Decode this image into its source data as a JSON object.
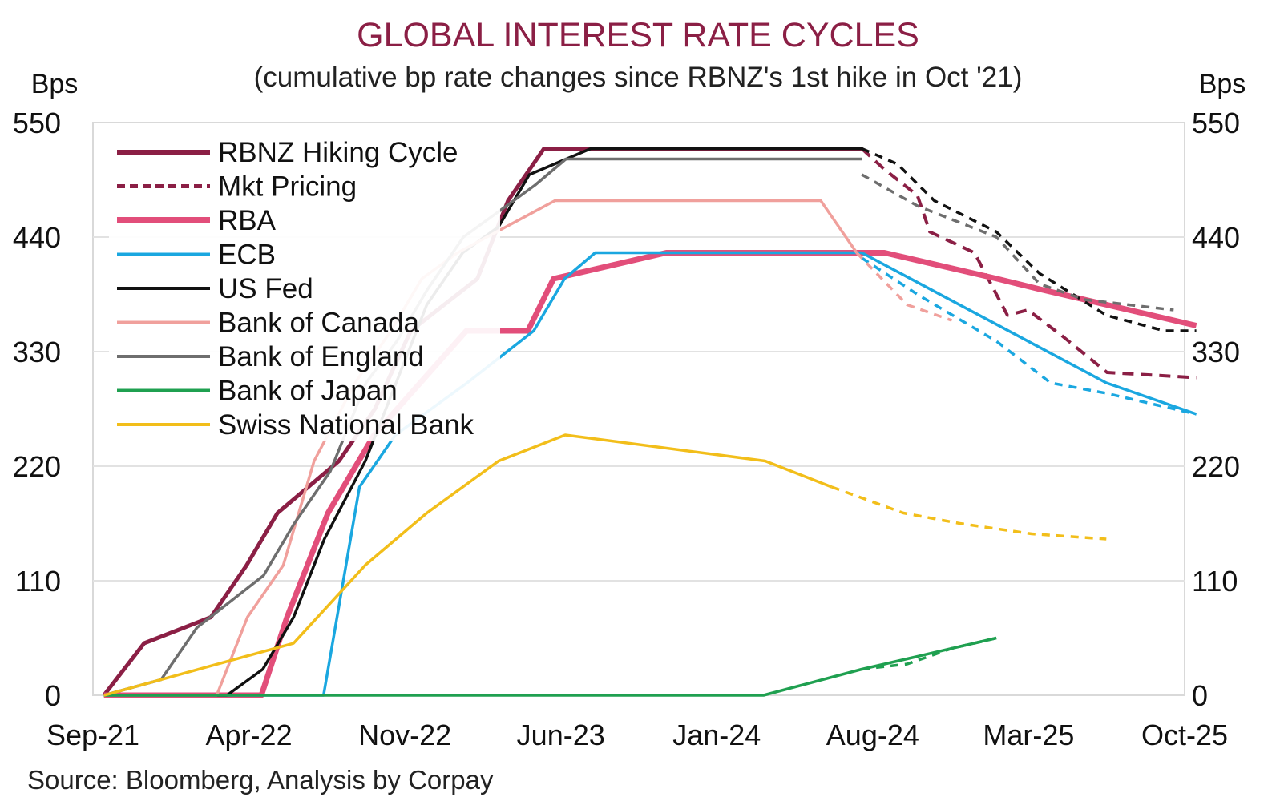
{
  "chart_data": {
    "type": "line",
    "title": "GLOBAL INTEREST RATE CYCLES",
    "subtitle": "(cumulative bp rate changes since RBNZ's 1st hike in Oct '21)",
    "ylabel_left": "Bps",
    "ylabel_right": "Bps",
    "source": "Source: Bloomberg, Analysis by Corpay",
    "title_color": "#8B1F45",
    "x_ticks": [
      "Sep-21",
      "Apr-22",
      "Nov-22",
      "Jun-23",
      "Jan-24",
      "Aug-24",
      "Mar-25",
      "Oct-25"
    ],
    "y_ticks": [
      0,
      110,
      220,
      330,
      440,
      550
    ],
    "ylim": [
      0,
      550
    ],
    "x_range": [
      "Sep-21",
      "Oct-25"
    ],
    "grid": true,
    "legend_position": "top-left",
    "series": [
      {
        "name": "RBNZ Hiking Cycle",
        "color": "#8B1F45",
        "width": 5,
        "dash": "",
        "points": [
          [
            "2021-09-30",
            0
          ],
          [
            "2021-11-24",
            50
          ],
          [
            "2022-02-23",
            75
          ],
          [
            "2022-04-13",
            125
          ],
          [
            "2022-05-25",
            175
          ],
          [
            "2022-08-17",
            225
          ],
          [
            "2022-10-05",
            275
          ],
          [
            "2022-11-23",
            350
          ],
          [
            "2023-02-22",
            400
          ],
          [
            "2023-04-05",
            475
          ],
          [
            "2023-05-24",
            525
          ],
          [
            "2024-07-31",
            525
          ]
        ]
      },
      {
        "name": "Mkt Pricing",
        "color": "#8B1F45",
        "width": 4,
        "dash": "14,9",
        "points": [
          [
            "2024-07-31",
            525
          ],
          [
            "2024-08-31",
            505
          ],
          [
            "2024-10-15",
            480
          ],
          [
            "2024-11-01",
            445
          ],
          [
            "2025-01-01",
            425
          ],
          [
            "2025-02-15",
            365
          ],
          [
            "2025-03-15",
            370
          ],
          [
            "2025-05-01",
            345
          ],
          [
            "2025-07-01",
            310
          ],
          [
            "2025-10-31",
            305
          ]
        ]
      },
      {
        "name": "RBA",
        "color": "#E24E7A",
        "width": 7,
        "dash": "",
        "points": [
          [
            "2021-09-30",
            0
          ],
          [
            "2022-05-03",
            0
          ],
          [
            "2022-06-07",
            75
          ],
          [
            "2022-08-02",
            175
          ],
          [
            "2022-10-04",
            250
          ],
          [
            "2022-12-06",
            300
          ],
          [
            "2023-02-07",
            350
          ],
          [
            "2023-05-02",
            350
          ],
          [
            "2023-06-06",
            400
          ],
          [
            "2023-11-07",
            425
          ],
          [
            "2024-08-31",
            425
          ],
          [
            "2025-02-01",
            400
          ],
          [
            "2025-03-31",
            390
          ],
          [
            "2025-10-31",
            355
          ]
        ]
      },
      {
        "name": "ECB",
        "color": "#1AA7E0",
        "width": 3.5,
        "dash": "",
        "points": [
          [
            "2021-09-30",
            0
          ],
          [
            "2022-07-27",
            0
          ],
          [
            "2022-09-14",
            200
          ],
          [
            "2022-11-02",
            250
          ],
          [
            "2023-02-08",
            300
          ],
          [
            "2023-05-10",
            350
          ],
          [
            "2023-06-21",
            400
          ],
          [
            "2023-08-02",
            425
          ],
          [
            "2024-06-12",
            425
          ],
          [
            "2024-07-31",
            425
          ],
          [
            "2025-06-30",
            300
          ],
          [
            "2025-10-31",
            270
          ]
        ]
      },
      {
        "name": "US Fed",
        "color": "#111111",
        "width": 3.5,
        "dash": "",
        "points": [
          [
            "2021-09-30",
            0
          ],
          [
            "2022-03-17",
            0
          ],
          [
            "2022-05-05",
            25
          ],
          [
            "2022-06-16",
            75
          ],
          [
            "2022-07-28",
            150
          ],
          [
            "2022-09-22",
            225
          ],
          [
            "2022-11-03",
            300
          ],
          [
            "2022-12-15",
            375
          ],
          [
            "2023-02-02",
            425
          ],
          [
            "2023-03-23",
            450
          ],
          [
            "2023-05-04",
            500
          ],
          [
            "2023-07-27",
            525
          ],
          [
            "2024-07-31",
            525
          ]
        ]
      },
      {
        "name": "Bank of Canada",
        "color": "#F0A09C",
        "width": 3.5,
        "dash": "",
        "points": [
          [
            "2021-09-30",
            0
          ],
          [
            "2022-03-03",
            0
          ],
          [
            "2022-04-14",
            75
          ],
          [
            "2022-06-02",
            125
          ],
          [
            "2022-07-14",
            225
          ],
          [
            "2022-09-08",
            300
          ],
          [
            "2022-10-27",
            350
          ],
          [
            "2022-12-08",
            400
          ],
          [
            "2023-01-26",
            425
          ],
          [
            "2023-06-08",
            475
          ],
          [
            "2024-06-05",
            475
          ],
          [
            "2024-07-24",
            425
          ]
        ]
      },
      {
        "name": "Bank of England",
        "color": "#6E6E6E",
        "width": 3.5,
        "dash": "",
        "points": [
          [
            "2021-09-30",
            0
          ],
          [
            "2021-12-17",
            15
          ],
          [
            "2022-02-04",
            65
          ],
          [
            "2022-05-06",
            115
          ],
          [
            "2022-06-17",
            165
          ],
          [
            "2022-08-05",
            215
          ],
          [
            "2022-09-23",
            300
          ],
          [
            "2022-11-04",
            340
          ],
          [
            "2022-12-16",
            390
          ],
          [
            "2023-02-03",
            440
          ],
          [
            "2023-03-24",
            465
          ],
          [
            "2023-05-12",
            490
          ],
          [
            "2023-06-23",
            515
          ],
          [
            "2024-07-31",
            515
          ]
        ]
      },
      {
        "name": "Bank of Japan",
        "color": "#1FA050",
        "width": 3.5,
        "dash": "",
        "points": [
          [
            "2021-09-30",
            0
          ],
          [
            "2024-03-19",
            0
          ],
          [
            "2024-07-31",
            25
          ],
          [
            "2024-10-01",
            35
          ],
          [
            "2025-01-31",
            55
          ]
        ]
      },
      {
        "name": "Swiss National Bank",
        "color": "#F2BE1A",
        "width": 3.5,
        "dash": "",
        "points": [
          [
            "2021-09-30",
            0
          ],
          [
            "2022-06-16",
            50
          ],
          [
            "2022-09-22",
            125
          ],
          [
            "2022-12-15",
            175
          ],
          [
            "2023-03-23",
            225
          ],
          [
            "2023-06-22",
            250
          ],
          [
            "2024-03-21",
            225
          ],
          [
            "2024-06-20",
            200
          ]
        ]
      },
      {
        "name": "",
        "color": "#111111",
        "width": 3.5,
        "dash": "10,8",
        "points": [
          [
            "2024-07-31",
            525
          ],
          [
            "2024-09-18",
            510
          ],
          [
            "2024-11-07",
            475
          ],
          [
            "2025-01-31",
            445
          ],
          [
            "2025-03-31",
            405
          ],
          [
            "2025-06-30",
            365
          ],
          [
            "2025-09-17",
            350
          ],
          [
            "2025-10-31",
            350
          ]
        ]
      },
      {
        "name": "",
        "color": "#6E6E6E",
        "width": 3.5,
        "dash": "10,8",
        "points": [
          [
            "2024-07-31",
            500
          ],
          [
            "2024-10-15",
            470
          ],
          [
            "2025-01-31",
            440
          ],
          [
            "2025-03-31",
            395
          ],
          [
            "2025-05-31",
            380
          ],
          [
            "2025-09-30",
            370
          ]
        ]
      },
      {
        "name": "",
        "color": "#1AA7E0",
        "width": 3.5,
        "dash": "10,8",
        "points": [
          [
            "2024-07-31",
            420
          ],
          [
            "2024-10-15",
            385
          ],
          [
            "2025-01-31",
            340
          ],
          [
            "2025-04-15",
            300
          ],
          [
            "2025-06-30",
            290
          ],
          [
            "2025-10-31",
            270
          ]
        ]
      },
      {
        "name": "",
        "color": "#F0A09C",
        "width": 3.5,
        "dash": "10,8",
        "points": [
          [
            "2024-07-24",
            425
          ],
          [
            "2024-10-01",
            375
          ],
          [
            "2024-12-01",
            360
          ]
        ]
      },
      {
        "name": "",
        "color": "#1FA050",
        "width": 3.5,
        "dash": "10,8",
        "points": [
          [
            "2024-07-31",
            25
          ],
          [
            "2024-10-01",
            30
          ],
          [
            "2024-12-01",
            45
          ],
          [
            "2025-01-31",
            55
          ]
        ]
      },
      {
        "name": "",
        "color": "#F2BE1A",
        "width": 3.5,
        "dash": "10,8",
        "points": [
          [
            "2024-06-20",
            200
          ],
          [
            "2024-09-26",
            175
          ],
          [
            "2024-12-12",
            165
          ],
          [
            "2025-03-20",
            155
          ],
          [
            "2025-06-30",
            150
          ]
        ]
      }
    ],
    "legend": [
      {
        "label": "RBNZ Hiking Cycle",
        "color": "#8B1F45",
        "width": 6,
        "dash": ""
      },
      {
        "label": "Mkt Pricing",
        "color": "#8B1F45",
        "width": 5,
        "dash": "10,6"
      },
      {
        "label": "RBA",
        "color": "#E24E7A",
        "width": 8,
        "dash": ""
      },
      {
        "label": "ECB",
        "color": "#1AA7E0",
        "width": 4,
        "dash": ""
      },
      {
        "label": "US Fed",
        "color": "#111111",
        "width": 4,
        "dash": ""
      },
      {
        "label": "Bank of Canada",
        "color": "#F0A09C",
        "width": 4,
        "dash": ""
      },
      {
        "label": "Bank of England",
        "color": "#6E6E6E",
        "width": 4,
        "dash": ""
      },
      {
        "label": "Bank of Japan",
        "color": "#1FA050",
        "width": 4,
        "dash": ""
      },
      {
        "label": "Swiss National Bank",
        "color": "#F2BE1A",
        "width": 4,
        "dash": ""
      }
    ]
  }
}
